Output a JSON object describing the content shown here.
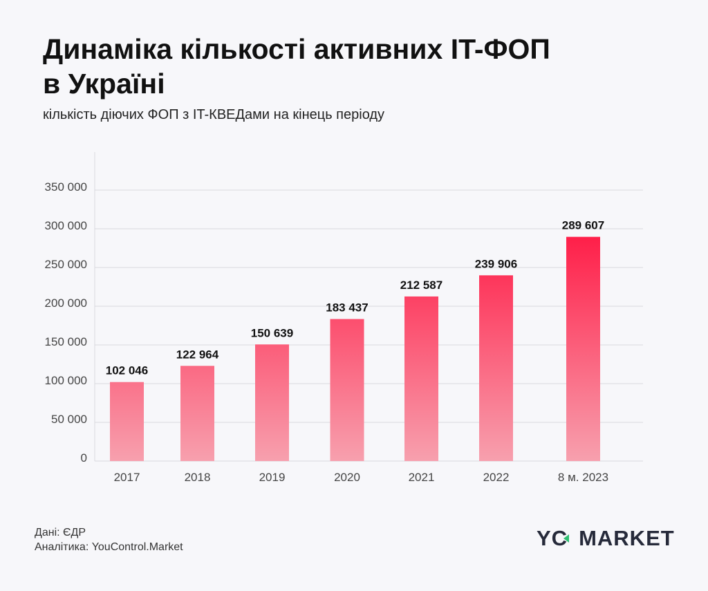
{
  "header": {
    "title_line1": "Динаміка кількості активних IT-ФОП",
    "title_line2": "в Україні",
    "subtitle": "кількість діючих ФОП з IT-КВЕДами на кінець періоду"
  },
  "chart_data": {
    "type": "bar",
    "categories": [
      "2017",
      "2018",
      "2019",
      "2020",
      "2021",
      "2022",
      "8 м. 2023"
    ],
    "values": [
      102046,
      122964,
      150639,
      183437,
      212587,
      239906,
      289607
    ],
    "value_labels": [
      "102 046",
      "122 964",
      "150 639",
      "183 437",
      "212 587",
      "239 906",
      "289 607"
    ],
    "yticks": [
      0,
      50000,
      100000,
      150000,
      200000,
      250000,
      300000,
      350000
    ],
    "ytick_labels": [
      "0",
      "50 000",
      "100 000",
      "150 000",
      "200 000",
      "250 000",
      "300 000",
      "350 000"
    ],
    "ylim": [
      0,
      350000
    ],
    "grid": true,
    "colors": {
      "bar_top": "#ff1a45",
      "bar_bottom": "#f7a0ae",
      "grid": "#d9d9de"
    }
  },
  "footer": {
    "source": "Дані: ЄДР",
    "analytics": "Аналітика: YouControl.Market",
    "logo_left": "YC",
    "logo_right": "MARKET"
  }
}
